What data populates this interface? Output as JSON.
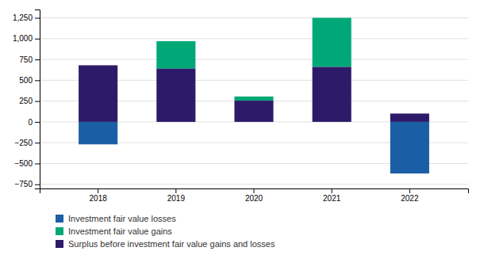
{
  "chart_data": {
    "type": "bar",
    "stacked": true,
    "categories": [
      "2018",
      "2019",
      "2020",
      "2021",
      "2022"
    ],
    "series": [
      {
        "name": "Investment fair value losses",
        "color": "#1a5fa5",
        "values": [
          -270,
          0,
          0,
          0,
          -620
        ]
      },
      {
        "name": "Investment fair value gains",
        "color": "#00a878",
        "values": [
          0,
          330,
          50,
          590,
          0
        ]
      },
      {
        "name": "Surplus before investment fair value gains and losses",
        "color": "#2d1b69",
        "values": [
          680,
          640,
          255,
          660,
          100
        ]
      }
    ],
    "ylim": [
      -800,
      1350
    ],
    "yticks": [
      {
        "value": -750,
        "label": "−750"
      },
      {
        "value": -500,
        "label": "−500"
      },
      {
        "value": -250,
        "label": "−250"
      },
      0,
      250,
      500,
      750,
      {
        "value": 1000,
        "label": "1,000"
      },
      {
        "value": 1250,
        "label": "1,250"
      }
    ],
    "grid": true,
    "legend": "bottom"
  }
}
